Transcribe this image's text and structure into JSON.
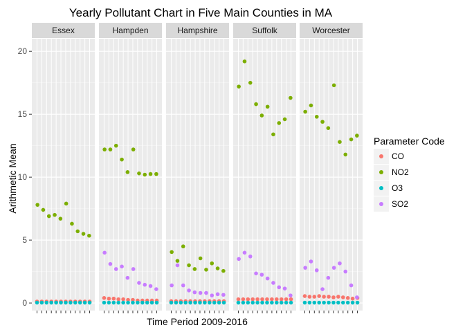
{
  "chart_data": {
    "type": "scatter",
    "title": "Yearly Pollutant Chart in Five Main Counties in MA",
    "xlabel": "Time Period 2009-2016",
    "ylabel": "Arithmetic Mean",
    "ylim": [
      -0.6,
      21.0
    ],
    "yticks": [
      0,
      5,
      10,
      15,
      20
    ],
    "grid": true,
    "legend": {
      "title": "Parameter Code",
      "position": "right"
    },
    "panels": [
      "Essex",
      "Hampden",
      "Hampshire",
      "Suffolk",
      "Worcester"
    ],
    "series_colors": {
      "CO": "#F8766D",
      "NO2": "#7CAE00",
      "O3": "#00BFC4",
      "SO2": "#C77CFF"
    },
    "data": {
      "Essex": {
        "CO": [
          0.12,
          0.12,
          0.12,
          0.12,
          0.12,
          0.12,
          0.12,
          0.12,
          0.12,
          0.12,
          0.12,
          0.12
        ],
        "NO2": [
          7.8,
          7.4,
          6.9,
          7.0,
          6.7,
          7.9,
          6.3,
          5.7,
          5.5,
          5.35
        ],
        "O3": [
          0.03,
          0.03,
          0.03,
          0.03,
          0.03,
          0.03,
          0.03,
          0.03,
          0.03,
          0.03,
          0.03,
          0.03
        ],
        "SO2": []
      },
      "Hampden": {
        "CO": [
          0.4,
          0.35,
          0.35,
          0.3,
          0.3,
          0.25,
          0.25,
          0.2,
          0.2,
          0.2,
          0.2,
          0.2
        ],
        "NO2": [
          12.2,
          12.2,
          12.5,
          11.4,
          10.4,
          12.2,
          10.3,
          10.2,
          10.25,
          10.25
        ],
        "O3": [
          0.03,
          0.03,
          0.03,
          0.03,
          0.03,
          0.03,
          0.03,
          0.03,
          0.03,
          0.03,
          0.03,
          0.03
        ],
        "SO2": [
          4.0,
          3.1,
          2.7,
          2.9,
          2.0,
          2.7,
          1.6,
          1.45,
          1.35,
          1.1
        ]
      },
      "Hampshire": {
        "CO": [
          0.15,
          0.15,
          0.15,
          0.15,
          0.15,
          0.15,
          0.15,
          0.15,
          0.15,
          0.15,
          0.15,
          0.15
        ],
        "NO2": [
          4.05,
          3.35,
          4.5,
          3.0,
          2.7,
          3.55,
          2.65,
          3.15,
          2.75,
          2.55
        ],
        "O3": [
          0.03,
          0.03,
          0.03,
          0.03,
          0.03,
          0.03,
          0.03,
          0.03,
          0.03,
          0.03,
          0.03,
          0.03
        ],
        "SO2": [
          1.4,
          3.0,
          1.4,
          1.0,
          0.85,
          0.8,
          0.8,
          0.6,
          0.7,
          0.65
        ]
      },
      "Suffolk": {
        "CO": [
          0.3,
          0.3,
          0.3,
          0.3,
          0.3,
          0.3,
          0.3,
          0.3,
          0.3,
          0.3,
          0.3,
          0.3
        ],
        "NO2": [
          17.2,
          19.2,
          17.5,
          15.8,
          14.9,
          15.6,
          13.4,
          14.3,
          14.6,
          16.3
        ],
        "O3": [
          0.03,
          0.03,
          0.03,
          0.03,
          0.03,
          0.03,
          0.03,
          0.03,
          0.03,
          0.03,
          0.03,
          0.03
        ],
        "SO2": [
          3.5,
          4.0,
          3.7,
          2.35,
          2.25,
          1.95,
          1.6,
          1.25,
          1.15,
          0.6
        ]
      },
      "Worcester": {
        "CO": [
          0.55,
          0.5,
          0.5,
          0.55,
          0.5,
          0.5,
          0.45,
          0.5,
          0.45,
          0.4,
          0.35,
          0.4
        ],
        "NO2": [
          15.2,
          15.7,
          14.8,
          14.4,
          13.9,
          17.3,
          12.8,
          11.8,
          13.0,
          13.3
        ],
        "O3": [
          0.03,
          0.03,
          0.03,
          0.03,
          0.03,
          0.03,
          0.03,
          0.03,
          0.03,
          0.03,
          0.03,
          0.03
        ],
        "SO2": [
          2.8,
          3.3,
          2.6,
          1.1,
          2.0,
          2.8,
          3.15,
          2.5,
          1.4,
          0.45
        ]
      }
    }
  }
}
